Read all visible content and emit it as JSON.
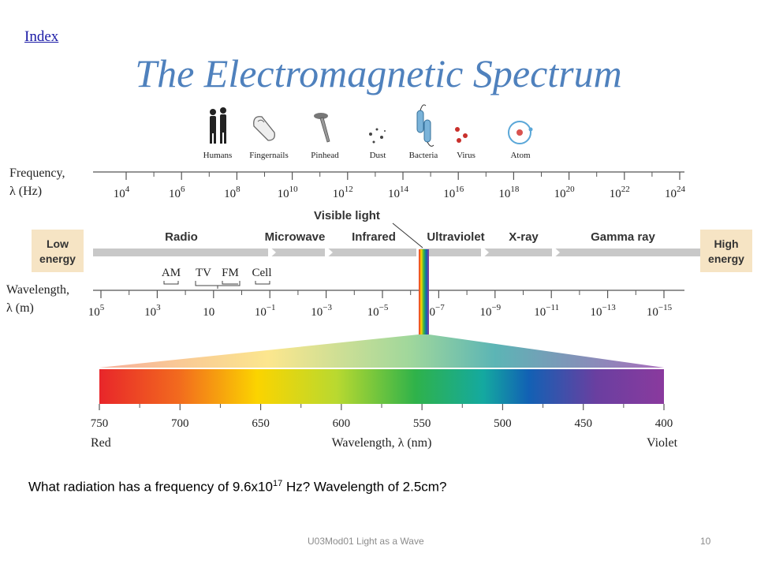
{
  "header": {
    "index_link": "Index",
    "title": "The Electromagnetic Spectrum"
  },
  "objects": [
    "Humans",
    "Fingernails",
    "Pinhead",
    "Dust",
    "Bacteria",
    "Virus",
    "Atom"
  ],
  "frequency_axis": {
    "label_line1": "Frequency,",
    "label_line2": "λ (Hz)",
    "ticks": [
      {
        "base": "10",
        "exp": "4"
      },
      {
        "base": "10",
        "exp": "6"
      },
      {
        "base": "10",
        "exp": "8"
      },
      {
        "base": "10",
        "exp": "10"
      },
      {
        "base": "10",
        "exp": "12"
      },
      {
        "base": "10",
        "exp": "14"
      },
      {
        "base": "10",
        "exp": "16"
      },
      {
        "base": "10",
        "exp": "18"
      },
      {
        "base": "10",
        "exp": "20"
      },
      {
        "base": "10",
        "exp": "22"
      },
      {
        "base": "10",
        "exp": "24"
      }
    ]
  },
  "visible_light_label": "Visible light",
  "bands": [
    "Radio",
    "Microwave",
    "Infrared",
    "Ultraviolet",
    "X-ray",
    "Gamma ray"
  ],
  "energy": {
    "low_line1": "Low",
    "low_line2": "energy",
    "high_line1": "High",
    "high_line2": "energy"
  },
  "radio_sub": [
    "AM",
    "TV",
    "FM",
    "Cell"
  ],
  "wavelength_axis": {
    "label_line1": "Wavelength,",
    "label_line2": "λ (m)",
    "ticks": [
      {
        "base": "10",
        "exp": "5"
      },
      {
        "base": "10",
        "exp": "3"
      },
      {
        "base": "10",
        "exp": ""
      },
      {
        "base": "10",
        "exp": "−1"
      },
      {
        "base": "10",
        "exp": "−3"
      },
      {
        "base": "10",
        "exp": "−5"
      },
      {
        "base": "10",
        "exp": "−7"
      },
      {
        "base": "10",
        "exp": "−9"
      },
      {
        "base": "10",
        "exp": "−11"
      },
      {
        "base": "10",
        "exp": "−13"
      },
      {
        "base": "10",
        "exp": "−15"
      }
    ]
  },
  "visible_axis": {
    "ticks": [
      "750",
      "700",
      "650",
      "600",
      "550",
      "500",
      "450",
      "400"
    ],
    "left_label": "Red",
    "right_label": "Violet",
    "label": "Wavelength, λ (nm)"
  },
  "question": {
    "part1": "What radiation has a frequency of 9.6x10",
    "sup": "17",
    "part2": " Hz?   Wavelength of 2.5cm?"
  },
  "footer": {
    "text": "U03Mod01 Light as a Wave",
    "page": "10"
  },
  "colors": {
    "title": "#4f81bd",
    "energy_box": "#f6e4c4",
    "arrow": "#bdbdbd"
  }
}
